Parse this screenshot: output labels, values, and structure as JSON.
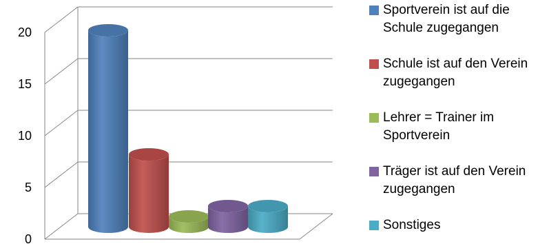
{
  "chart_data": {
    "type": "bar",
    "variant": "3d-cylinder",
    "categories": [
      "Sportverein ist auf die Schule zugegangen",
      "Schule ist auf den Verein zugegangen",
      "Lehrer = Trainer im Sportverein",
      "Träger ist auf den Verein zugegangen",
      "Sonstiges"
    ],
    "values": [
      19,
      7,
      1,
      2,
      2
    ],
    "colors": [
      "#4F81BD",
      "#C0504D",
      "#9BBB59",
      "#8064A2",
      "#4BACC6"
    ],
    "ylim": [
      0,
      20
    ],
    "yticks": [
      "0",
      "5",
      "10",
      "15",
      "20"
    ],
    "grid": true,
    "legend_position": "right",
    "title": "",
    "xlabel": "",
    "ylabel": ""
  }
}
